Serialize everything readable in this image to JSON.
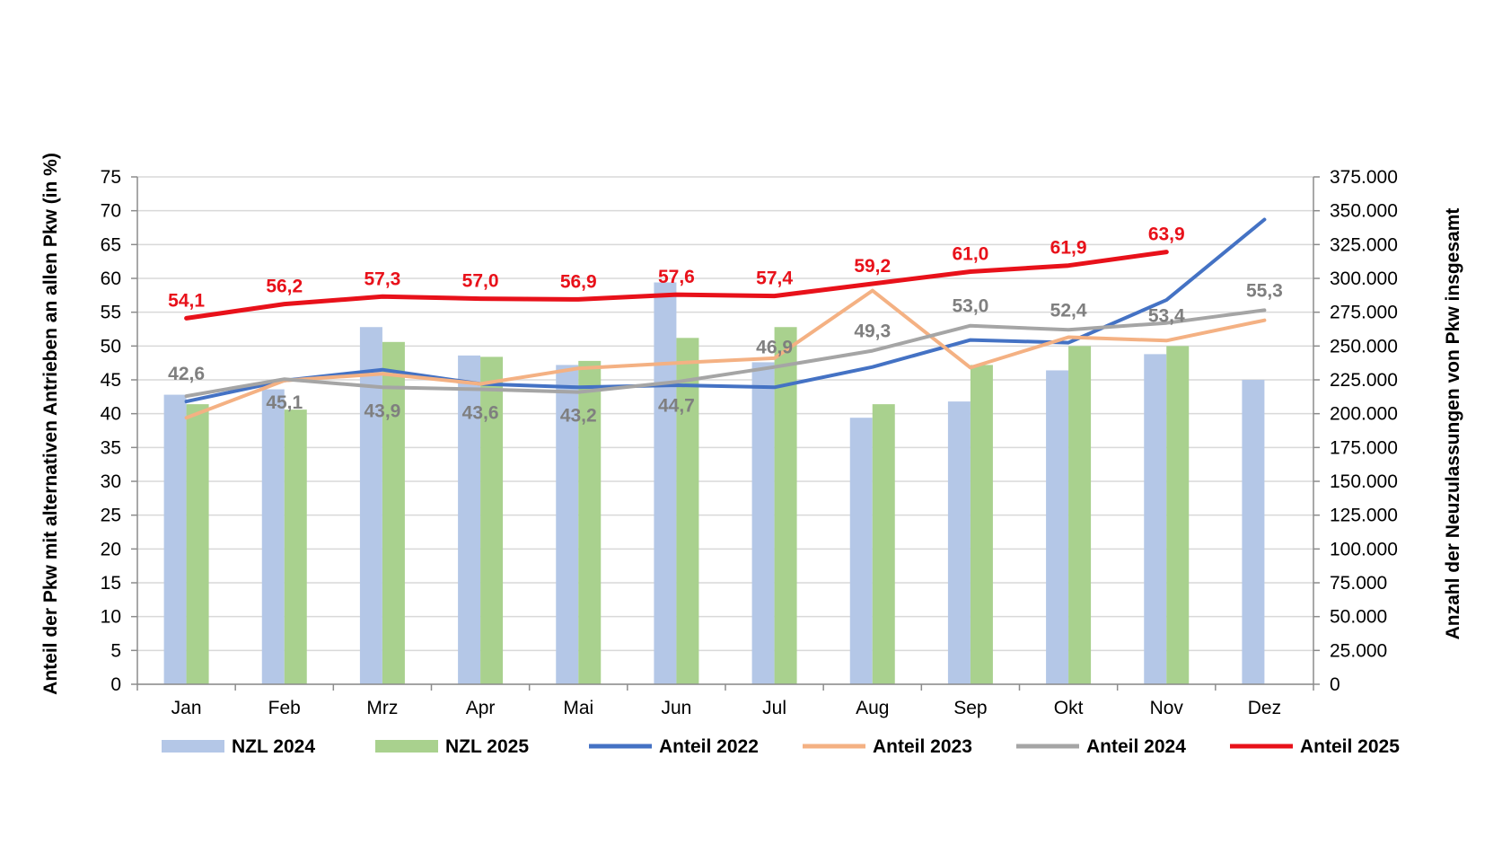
{
  "chart_data": {
    "type": "bar+line",
    "categories": [
      "Jan",
      "Feb",
      "Mrz",
      "Apr",
      "Mai",
      "Jun",
      "Jul",
      "Aug",
      "Sep",
      "Okt",
      "Nov",
      "Dez"
    ],
    "ylabel_left": "Anteil der Pkw mit alternativen Antrieben an allen Pkw (in %)",
    "ylabel_right": "Anzahl der Neuzulassungen von Pkw insgesamt",
    "ylim_left": [
      0,
      75
    ],
    "yticks_left": [
      "0",
      "5",
      "10",
      "15",
      "20",
      "25",
      "30",
      "35",
      "40",
      "45",
      "50",
      "55",
      "60",
      "65",
      "70",
      "75"
    ],
    "ylim_right": [
      0,
      375000
    ],
    "yticks_right": [
      "0",
      "25.000",
      "50.000",
      "75.000",
      "100.000",
      "125.000",
      "150.000",
      "175.000",
      "200.000",
      "225.000",
      "250.000",
      "275.000",
      "300.000",
      "325.000",
      "350.000",
      "375.000"
    ],
    "grid": true,
    "legend_position": "bottom",
    "bar_series": [
      {
        "name": "NZL 2024",
        "color": "#b4c7e7",
        "values": [
          214000,
          218000,
          264000,
          243000,
          236000,
          297000,
          238000,
          197000,
          209000,
          232000,
          244000,
          225000
        ]
      },
      {
        "name": "NZL 2025",
        "color": "#a9d18e",
        "values": [
          207000,
          203000,
          253000,
          242000,
          239000,
          256000,
          264000,
          207000,
          236000,
          250000,
          250000,
          null
        ]
      }
    ],
    "line_series": [
      {
        "name": "Anteil 2022",
        "color": "#4472c4",
        "values": [
          41.8,
          44.9,
          46.5,
          44.4,
          43.9,
          44.2,
          43.9,
          46.9,
          50.9,
          50.5,
          56.8,
          68.7
        ],
        "labels": null
      },
      {
        "name": "Anteil 2023",
        "color": "#f4b183",
        "values": [
          39.4,
          44.9,
          45.9,
          44.4,
          46.7,
          47.5,
          48.2,
          58.2,
          46.8,
          51.3,
          50.8,
          53.8
        ],
        "labels": null
      },
      {
        "name": "Anteil 2024",
        "color": "#a5a5a5",
        "values": [
          42.6,
          45.1,
          43.9,
          43.6,
          43.2,
          44.7,
          46.9,
          49.3,
          53.0,
          52.4,
          53.4,
          55.3
        ],
        "labels": [
          "42,6",
          "45,1",
          "43,9",
          "43,6",
          "43,2",
          "44,7",
          "46,9",
          "49,3",
          "53,0",
          "52,4",
          "53,4",
          "55,3"
        ],
        "label_color": "#7f7f7f"
      },
      {
        "name": "Anteil 2025",
        "color": "#e8111a",
        "values": [
          54.1,
          56.2,
          57.3,
          57.0,
          56.9,
          57.6,
          57.4,
          59.2,
          61.0,
          61.9,
          63.9,
          null
        ],
        "labels": [
          "54,1",
          "56,2",
          "57,3",
          "57,0",
          "56,9",
          "57,6",
          "57,4",
          "59,2",
          "61,0",
          "61,9",
          "63,9",
          null
        ],
        "label_color": "#e8111a"
      }
    ],
    "legend": [
      "NZL 2024",
      "NZL 2025",
      "Anteil 2022",
      "Anteil 2023",
      "Anteil 2024",
      "Anteil 2025"
    ]
  }
}
